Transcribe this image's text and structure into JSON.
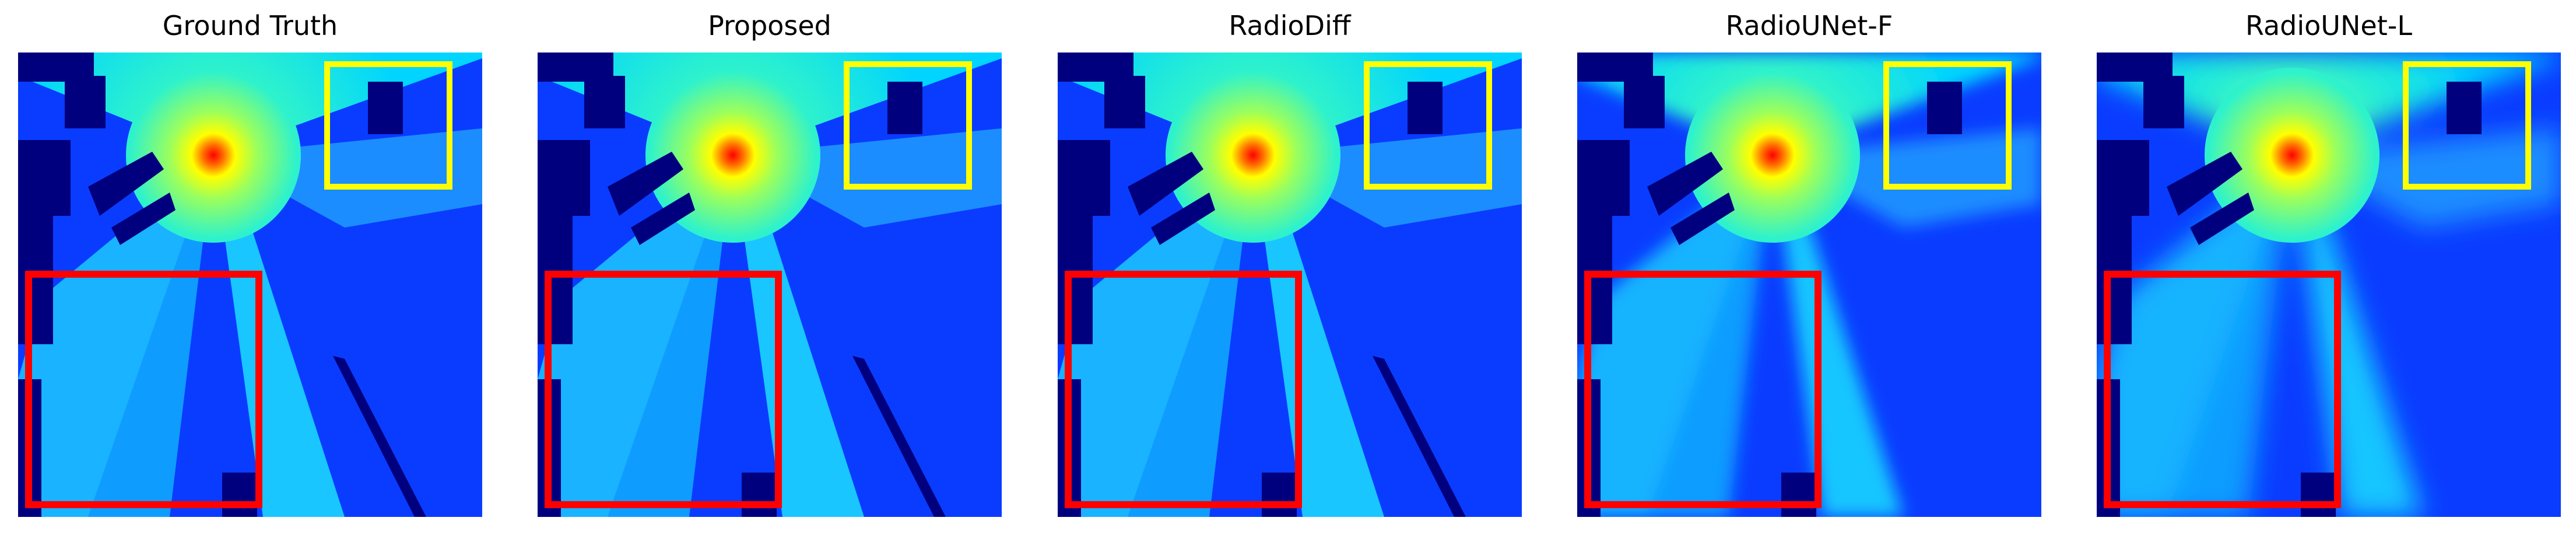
{
  "figure": {
    "panels": [
      {
        "title": "Ground Truth"
      },
      {
        "title": "Proposed"
      },
      {
        "title": "RadioDiff"
      },
      {
        "title": "RadioUNet-F"
      },
      {
        "title": "RadioUNet-L"
      }
    ],
    "colors": {
      "background": "#ffffff",
      "building": "#00007f",
      "source_hot": "#ff0000",
      "source_warm": "#ffff00",
      "field_cyan": "#00d4ff",
      "field_blue": "#0033ff",
      "zoom_box_small": "#ffff00",
      "zoom_box_large": "#ff0000"
    }
  }
}
